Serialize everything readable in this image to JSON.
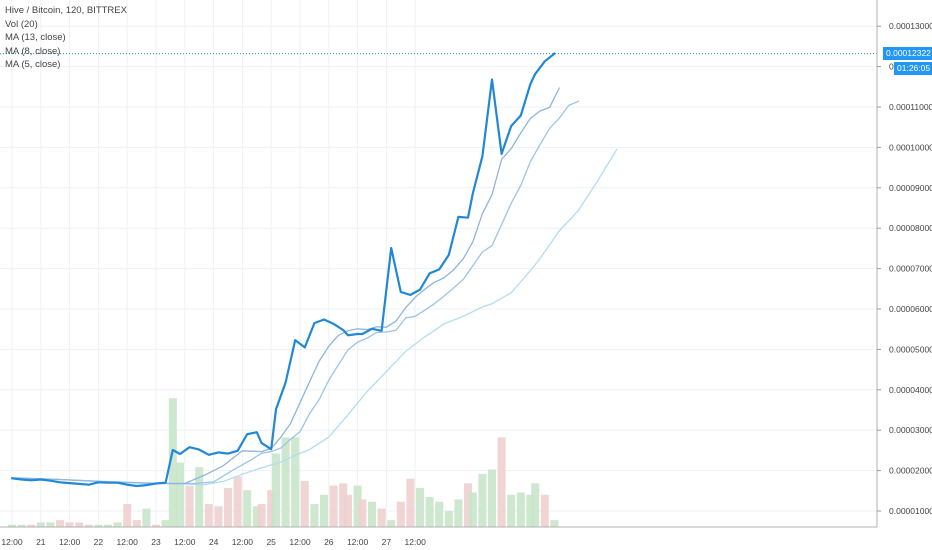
{
  "legend": {
    "symbol": "Hive / Bitcoin, 120, BITTREX",
    "vol": "Vol (20)",
    "ma13": "MA (13, close)",
    "ma8": "MA (8, close)",
    "ma5": "MA (5, close)"
  },
  "price_badge": "0.00012322",
  "time_badge": "01:26:05",
  "colors": {
    "price": "#2188d6",
    "ma5": "#8fb5dc",
    "ma8": "#9cc4e6",
    "ma13": "#b3dcf3",
    "vol_up": "#c8e6c9",
    "vol_down": "#f0d0d0",
    "grid": "#eef1f5",
    "badge": "#2196f3"
  },
  "chart_data": {
    "type": "line",
    "title": "Hive / Bitcoin, 120, BITTREX",
    "x_tick_labels": [
      "12:00",
      "21",
      "12:00",
      "22",
      "12:00",
      "23",
      "12:00",
      "24",
      "12:00",
      "25",
      "12:00",
      "26",
      "12:00",
      "27",
      "12:00"
    ],
    "y_tick_labels": [
      "0.00013000",
      "0.00012000",
      "0.00011000",
      "0.00010000",
      "0.00009000",
      "0.00008000",
      "0.00007000",
      "0.00006000",
      "0.00005000",
      "0.00004000",
      "0.00003000",
      "0.00002000",
      "0.00001000"
    ],
    "ylim": [
      7.5e-06,
      0.000134
    ],
    "x_unit": "2-hour bars (bar 0 = Day 20 12:00)",
    "current_price": 0.00012322,
    "series": [
      {
        "name": "Hive / Bitcoin",
        "x": [
          0,
          2,
          4,
          6,
          8,
          10,
          12,
          14,
          16,
          18,
          20,
          22,
          24,
          26,
          28,
          30,
          32,
          33.5,
          35,
          37,
          39,
          41,
          43,
          45,
          47,
          49,
          51,
          52,
          54,
          55,
          57,
          59,
          61,
          63,
          65,
          67,
          69,
          70,
          72,
          73,
          75,
          77,
          79,
          81,
          83,
          85,
          87,
          89,
          91,
          93,
          95,
          96,
          98,
          100,
          102,
          104,
          106,
          108,
          109,
          111,
          113,
          115,
          117,
          119,
          121
        ],
        "y": [
          1.81e-05,
          1.78e-05,
          1.76e-05,
          1.78e-05,
          1.75e-05,
          1.71e-05,
          1.69e-05,
          1.67e-05,
          1.65e-05,
          1.71e-05,
          1.7e-05,
          1.7e-05,
          1.65e-05,
          1.62e-05,
          1.64e-05,
          1.68e-05,
          1.7e-05,
          2.51e-05,
          2.41e-05,
          2.58e-05,
          2.52e-05,
          2.39e-05,
          2.45e-05,
          2.42e-05,
          2.49e-05,
          2.9e-05,
          2.95e-05,
          2.68e-05,
          2.53e-05,
          3.52e-05,
          4.18e-05,
          5.23e-05,
          5.05e-05,
          5.65e-05,
          5.74e-05,
          5.63e-05,
          5.48e-05,
          5.35e-05,
          5.38e-05,
          5.38e-05,
          5.51e-05,
          5.46e-05,
          7.51e-05,
          6.42e-05,
          6.35e-05,
          6.48e-05,
          6.88e-05,
          6.98e-05,
          7.34e-05,
          8.28e-05,
          8.26e-05,
          8.86e-05,
          9.78e-05,
          0.0001168,
          9.84e-05,
          0.0001053,
          0.0001079,
          0.0001157,
          0.0001182,
          0.0001213,
          0.00012322,
          null,
          null,
          null,
          null
        ]
      },
      {
        "name": "MA (5, close)",
        "x": [
          0,
          10,
          20,
          30,
          36,
          40,
          44,
          48,
          52,
          54,
          56,
          58,
          60,
          62,
          64,
          66,
          68,
          70,
          72,
          74,
          76,
          78,
          80,
          82,
          84,
          86,
          88,
          90,
          92,
          94,
          96,
          98,
          100,
          102,
          104,
          106,
          108,
          110,
          112,
          114
        ],
        "y": [
          1.82e-05,
          1.78e-05,
          1.72e-05,
          1.68e-05,
          1.68e-05,
          1.88e-05,
          2.12e-05,
          2.49e-05,
          2.47e-05,
          2.55e-05,
          2.83e-05,
          3.16e-05,
          3.68e-05,
          4.2e-05,
          4.71e-05,
          5.08e-05,
          5.35e-05,
          5.46e-05,
          5.51e-05,
          5.49e-05,
          5.56e-05,
          5.55e-05,
          5.7e-05,
          6.03e-05,
          6.29e-05,
          6.49e-05,
          6.66e-05,
          6.77e-05,
          6.97e-05,
          7.24e-05,
          7.66e-05,
          8.36e-05,
          8.83e-05,
          9.7e-05,
          9.97e-05,
          0.0001036,
          0.0001072,
          0.000109,
          0.0001099,
          0.0001147
        ]
      },
      {
        "name": "MA (8, close)",
        "x": [
          0,
          10,
          20,
          30,
          38,
          42,
          46,
          50,
          52,
          54,
          56,
          58,
          60,
          62,
          64,
          66,
          68,
          70,
          72,
          74,
          76,
          78,
          80,
          82,
          84,
          86,
          88,
          90,
          92,
          94,
          96,
          98,
          100,
          102,
          104,
          106,
          108,
          110,
          112,
          114,
          116,
          118
        ],
        "y": [
          1.8e-05,
          1.78e-05,
          1.72e-05,
          1.68e-05,
          1.68e-05,
          1.72e-05,
          2.01e-05,
          2.28e-05,
          2.43e-05,
          2.47e-05,
          2.56e-05,
          2.77e-05,
          2.96e-05,
          3.41e-05,
          3.76e-05,
          4.24e-05,
          4.62e-05,
          4.99e-05,
          5.18e-05,
          5.28e-05,
          5.42e-05,
          5.43e-05,
          5.47e-05,
          5.78e-05,
          5.82e-05,
          5.97e-05,
          6.13e-05,
          6.32e-05,
          6.52e-05,
          6.73e-05,
          7.07e-05,
          7.41e-05,
          7.57e-05,
          8.09e-05,
          8.62e-05,
          9.06e-05,
          9.65e-05,
          0.0001007,
          0.0001047,
          0.0001072,
          0.0001104,
          0.0001114
        ]
      },
      {
        "name": "MA (13, close)",
        "x": [
          0,
          10,
          20,
          30,
          40,
          44,
          48,
          52,
          56,
          60,
          62,
          66,
          70,
          74,
          78,
          82,
          86,
          90,
          94,
          98,
          100,
          104,
          108,
          110,
          114,
          118,
          122,
          126
        ],
        "y": [
          1.83e-05,
          1.78e-05,
          1.73e-05,
          1.69e-05,
          1.65e-05,
          1.73e-05,
          1.91e-05,
          2.07e-05,
          2.21e-05,
          2.43e-05,
          2.52e-05,
          2.83e-05,
          3.38e-05,
          3.96e-05,
          4.45e-05,
          4.95e-05,
          5.31e-05,
          5.63e-05,
          5.82e-05,
          6.05e-05,
          6.13e-05,
          6.4e-05,
          6.95e-05,
          7.25e-05,
          7.93e-05,
          8.44e-05,
          9.17e-05,
          9.95e-05
        ]
      }
    ],
    "volume": {
      "x": [
        0,
        2,
        4,
        6,
        8,
        10,
        12,
        14,
        16,
        18,
        20,
        22,
        24,
        26,
        28,
        30,
        32,
        33.5,
        35,
        37,
        39,
        41,
        43,
        45,
        47,
        49,
        51,
        52,
        54,
        55,
        57,
        59,
        61,
        63,
        65,
        67,
        69,
        70,
        72,
        73,
        75,
        77,
        79,
        81,
        83,
        85,
        87,
        89,
        91,
        93,
        95,
        96,
        98,
        100,
        102,
        104,
        106,
        108,
        109,
        111,
        113,
        115,
        117,
        119,
        121
      ],
      "up": [
        1,
        1,
        0,
        1,
        1,
        0,
        0,
        0,
        0,
        1,
        1,
        1,
        0,
        0,
        1,
        0,
        1,
        1,
        1,
        0,
        1,
        0,
        0,
        0,
        0,
        1,
        1,
        0,
        0,
        1,
        1,
        1,
        0,
        1,
        1,
        0,
        0,
        0,
        1,
        0,
        1,
        0,
        1,
        0,
        0,
        1,
        1,
        1,
        1,
        1,
        0,
        1,
        1,
        1,
        0,
        1,
        1,
        1,
        1,
        0,
        1,
        1,
        0,
        0,
        0
      ],
      "rel": [
        0.01,
        0.01,
        0.01,
        0.02,
        0.02,
        0.03,
        0.02,
        0.02,
        0.01,
        0.01,
        0.01,
        0.02,
        0.1,
        0.03,
        0.08,
        0.01,
        0.03,
        0.56,
        0.28,
        0.18,
        0.26,
        0.1,
        0.09,
        0.17,
        0.22,
        0.16,
        0.09,
        0.1,
        0.16,
        0.32,
        0.39,
        0.39,
        0.2,
        0.1,
        0.14,
        0.18,
        0.19,
        0.14,
        0.18,
        0.12,
        0.11,
        0.08,
        0.03,
        0.11,
        0.21,
        0.17,
        0.13,
        0.11,
        0.07,
        0.12,
        0.19,
        0.15,
        0.23,
        0.25,
        0.39,
        0.14,
        0.15,
        0.14,
        0.19,
        0.14,
        0.03,
        0,
        0,
        0,
        0
      ]
    }
  }
}
